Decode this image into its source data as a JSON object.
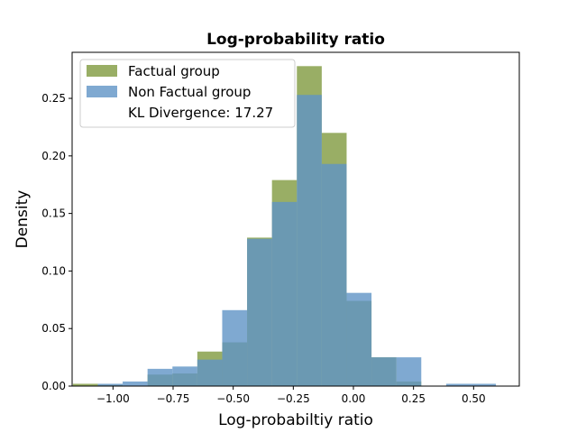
{
  "chart_data": {
    "type": "bar",
    "title": "Log-probability ratio",
    "xlabel": "Log-probabiltiy ratio",
    "ylabel": "Density",
    "xlim": [
      -1.17,
      0.69
    ],
    "ylim": [
      0,
      0.29
    ],
    "xticks": [
      -1.0,
      -0.75,
      -0.5,
      -0.25,
      0.0,
      0.25,
      0.5
    ],
    "xtick_labels": [
      "−1.00",
      "−0.75",
      "−0.50",
      "−0.25",
      "0.00",
      "0.25",
      "0.50"
    ],
    "yticks": [
      0.0,
      0.05,
      0.1,
      0.15,
      0.2,
      0.25
    ],
    "ytick_labels": [
      "0.00",
      "0.05",
      "0.10",
      "0.15",
      "0.20",
      "0.25"
    ],
    "bin_width": 0.1035,
    "series": [
      {
        "name": "Factual group",
        "color": "#7f9a3e",
        "bins": [
          {
            "x": -1.115,
            "v": 0.002
          },
          {
            "x": -1.0115,
            "v": 0.001
          },
          {
            "x": -0.908,
            "v": 0.0
          },
          {
            "x": -0.8045,
            "v": 0.01
          },
          {
            "x": -0.701,
            "v": 0.011
          },
          {
            "x": -0.5975,
            "v": 0.03
          },
          {
            "x": -0.494,
            "v": 0.038
          },
          {
            "x": -0.3905,
            "v": 0.129
          },
          {
            "x": -0.287,
            "v": 0.179
          },
          {
            "x": -0.1835,
            "v": 0.278
          },
          {
            "x": -0.08,
            "v": 0.22
          },
          {
            "x": 0.0235,
            "v": 0.074
          },
          {
            "x": 0.127,
            "v": 0.025
          },
          {
            "x": 0.2305,
            "v": 0.004
          }
        ]
      },
      {
        "name": "Non Factual group",
        "color": "#5f94c6",
        "bins": [
          {
            "x": -1.0115,
            "v": 0.002
          },
          {
            "x": -0.908,
            "v": 0.004
          },
          {
            "x": -0.8045,
            "v": 0.015
          },
          {
            "x": -0.701,
            "v": 0.017
          },
          {
            "x": -0.5975,
            "v": 0.023
          },
          {
            "x": -0.494,
            "v": 0.066
          },
          {
            "x": -0.3905,
            "v": 0.128
          },
          {
            "x": -0.287,
            "v": 0.16
          },
          {
            "x": -0.1835,
            "v": 0.253
          },
          {
            "x": -0.08,
            "v": 0.193
          },
          {
            "x": 0.0235,
            "v": 0.081
          },
          {
            "x": 0.127,
            "v": 0.025
          },
          {
            "x": 0.2305,
            "v": 0.025
          },
          {
            "x": 0.4375,
            "v": 0.002
          },
          {
            "x": 0.541,
            "v": 0.002
          }
        ]
      }
    ],
    "legend": {
      "position": "top-left",
      "entries": [
        "Factual group",
        "Non Factual group"
      ],
      "note": "KL Divergence: 17.27"
    }
  }
}
